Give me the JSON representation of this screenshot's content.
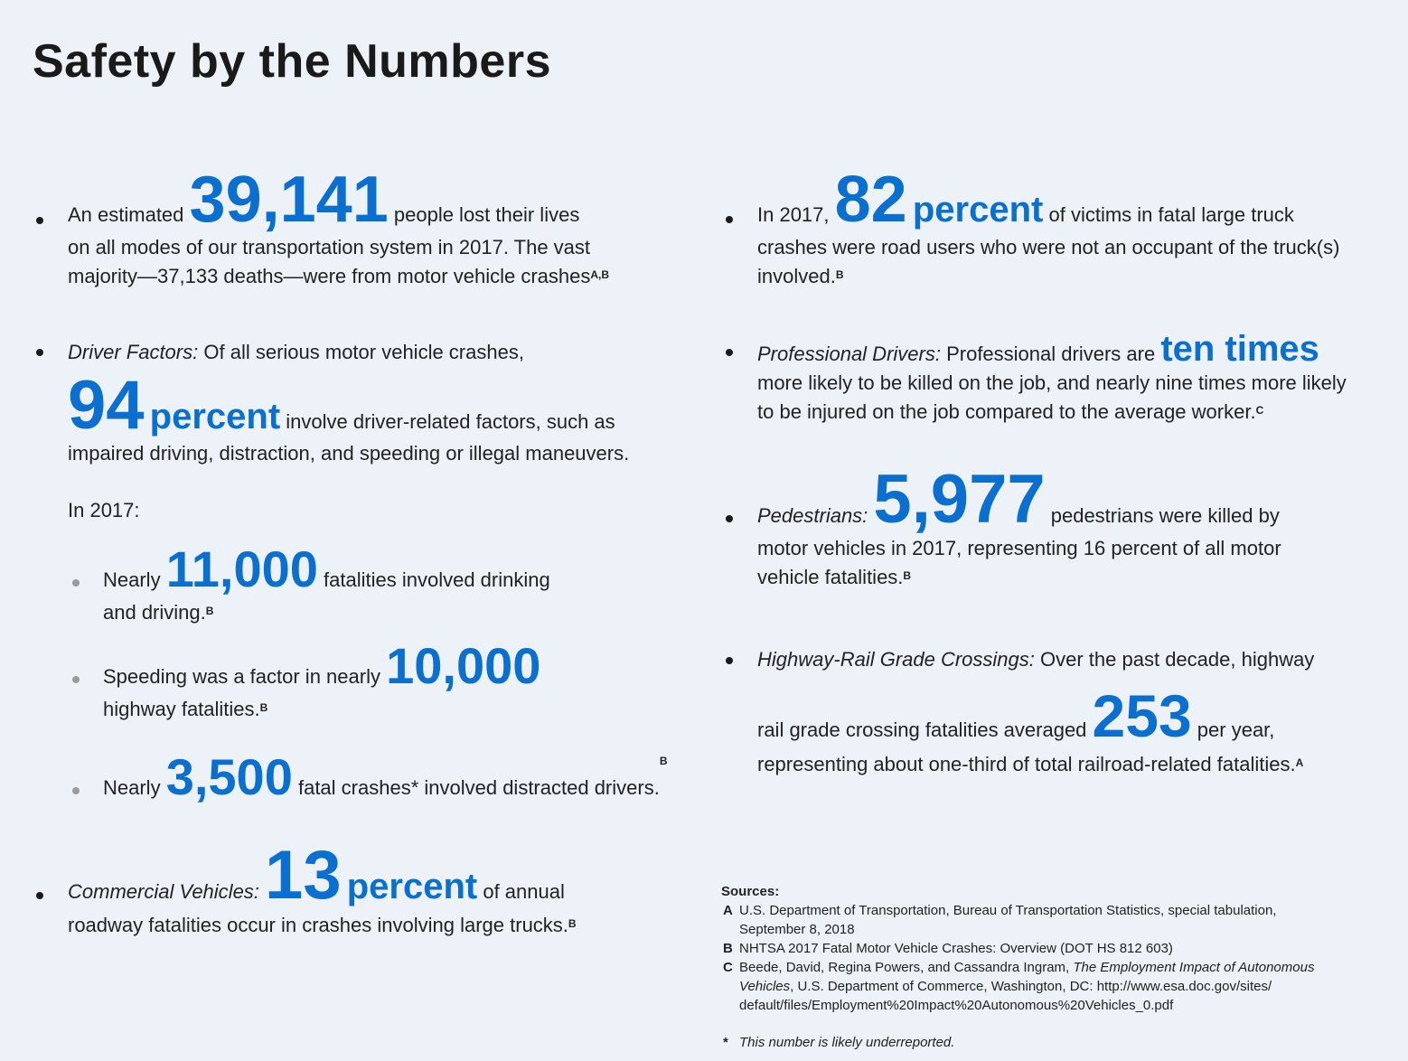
{
  "title": "Safety by the Numbers",
  "left": {
    "b1": {
      "pre": "An estimated",
      "number": "39,141",
      "post": "people lost their lives",
      "line2": "on all modes of our transportation system in 2017. The vast",
      "line3": "majority—37,133 deaths—were from motor vehicle crashes",
      "sup": "A,B"
    },
    "b2": {
      "label": "Driver Factors:",
      "text": "Of all serious motor vehicle crashes,",
      "number": "94",
      "pct": "percent",
      "post": "involve driver-related factors, such as",
      "line3": "impaired driving, distraction, and speeding or illegal maneuvers.",
      "in2017": "In 2017:"
    },
    "sub1": {
      "pre": "Nearly",
      "number": "11,000",
      "post": "fatalities involved drinking",
      "line2": "and driving.",
      "sup": "B"
    },
    "sub2": {
      "pre": "Speeding was a factor in nearly",
      "number": "10,000",
      "line2": "highway fatalities.",
      "sup": "B"
    },
    "sub3": {
      "pre": "Nearly",
      "number": "3,500",
      "post": "fatal crashes* involved distracted drivers.",
      "sup": "B"
    },
    "b3": {
      "label": "Commercial Vehicles:",
      "number": "13",
      "pct": "percent",
      "post": "of annual",
      "line2": "roadway fatalities occur in crashes involving large trucks.",
      "sup": "B"
    }
  },
  "right": {
    "b1": {
      "pre": "In 2017,",
      "number": "82",
      "pct": "percent",
      "post": "of victims in fatal large truck",
      "line2": "crashes were road users who were not an occupant of the truck(s)",
      "line3": "involved.",
      "sup": "B"
    },
    "b2": {
      "label": "Professional Drivers:",
      "text": "Professional drivers are",
      "emph": "ten times",
      "line2": "more likely to be killed on the job, and nearly nine times more likely",
      "line3": "to be injured on the job compared to the average worker.",
      "sup": "C"
    },
    "b3": {
      "label": "Pedestrians:",
      "number": "5,977",
      "post": "pedestrians were killed by",
      "line2": "motor vehicles in 2017, representing 16 percent of all motor",
      "line3": "vehicle fatalities.",
      "sup": "B"
    },
    "b4": {
      "label": "Highway-Rail Grade Crossings:",
      "text": "Over the past decade, highway",
      "line2pre": "rail grade crossing fatalities averaged",
      "number": "253",
      "line2post": "per year,",
      "line3": "representing about one-third of total railroad-related fatalities.",
      "sup": "A"
    }
  },
  "sources": {
    "heading": "Sources:",
    "a_key": "A",
    "a_line1": "U.S. Department of Transportation, Bureau of Transportation Statistics, special tabulation,",
    "a_line2": "September 8, 2018",
    "b_key": "B",
    "b_line1": "NHTSA 2017 Fatal Motor Vehicle Crashes: Overview  (DOT HS 812 603)",
    "c_key": "C",
    "c_line1_pre": "Beede, David, Regina Powers, and Cassandra Ingram,",
    "c_line1_ital": "The Employment Impact of Autonomous",
    "c_line2_ital": "Vehicles",
    "c_line2_post": ", U.S. Department of Commerce, Washington, DC: http://www.esa.doc.gov/sites/",
    "c_line3": "default/files/Employment%20Impact%20Autonomous%20Vehicles_0.pdf",
    "note_key": "*",
    "note": "This number is likely underreported."
  }
}
